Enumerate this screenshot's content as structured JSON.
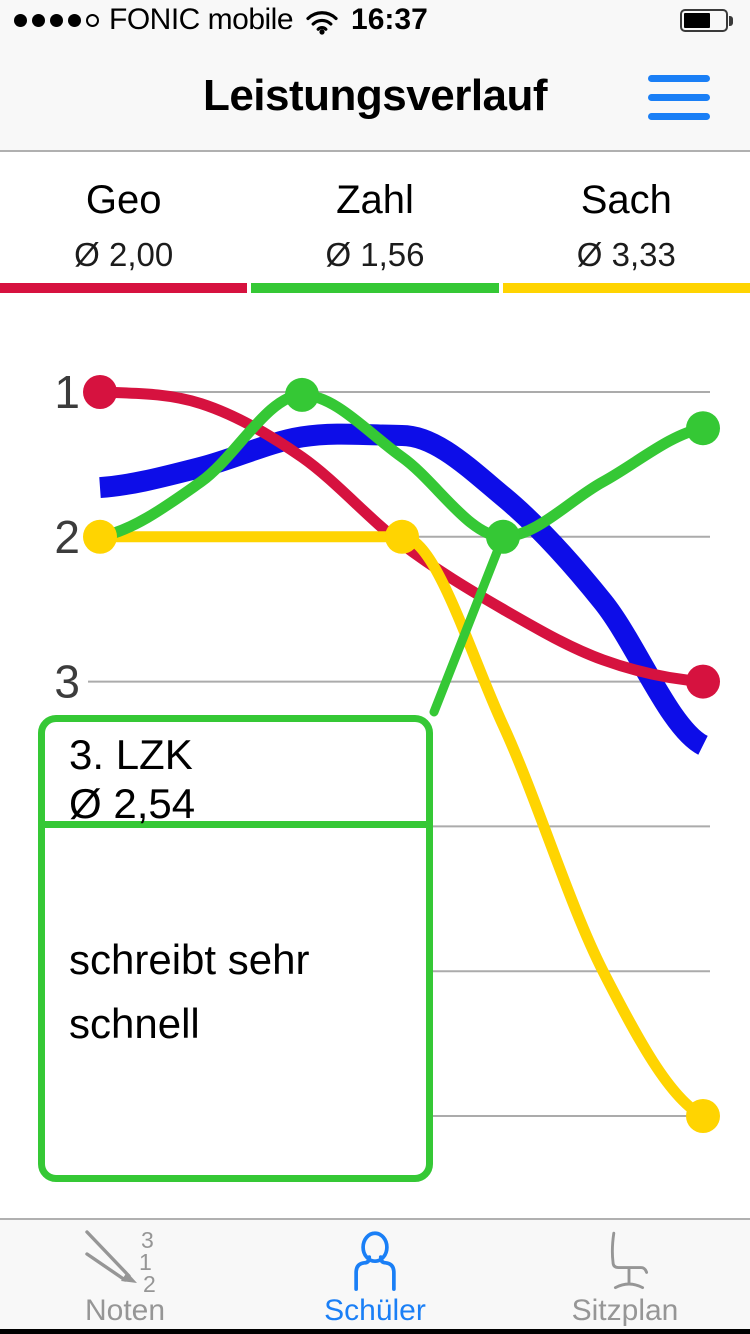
{
  "colors": {
    "ios_blue": "#1a7ff6",
    "red": "#d6123f",
    "green": "#35c835",
    "yellow": "#ffd401",
    "blue_line": "#0d0de8",
    "gridline": "#ababab",
    "axis_label": "#3c3c3c",
    "inactive_gray": "#969696",
    "bar_background": "#f8f8f8",
    "border_gray": "#b0b0b0"
  },
  "status_bar": {
    "carrier": "FONIC mobile",
    "time": "16:37",
    "signal_dots_filled": 4,
    "signal_dots_total": 5,
    "battery_fill_percent": 66
  },
  "nav": {
    "title": "Leistungsverlauf"
  },
  "subjects": [
    {
      "name": "Geo",
      "average": "Ø 2,00",
      "color": "#d6123f"
    },
    {
      "name": "Zahl",
      "average": "Ø 1,56",
      "color": "#35c835"
    },
    {
      "name": "Sach",
      "average": "Ø 3,33",
      "color": "#ffd401"
    }
  ],
  "chart_data": {
    "type": "line",
    "title": "Leistungsverlauf (grade history per subject)",
    "y_axis": {
      "unit": "school grade (1 = best, 6 = worst)",
      "min": 1,
      "max": 6,
      "inverted": true,
      "gridlines": 6,
      "visible_tick_labels": [
        "1",
        "2",
        "3"
      ]
    },
    "x_slots": 7,
    "series": [
      {
        "name": "unlabeled-blue-average",
        "color": "#0d0de8",
        "stroke_width": 21,
        "values": [
          1.66,
          1.52,
          1.31,
          1.3,
          1.72,
          2.45,
          3.44
        ],
        "markers": []
      },
      {
        "name": "Geo",
        "color": "#d6123f",
        "stroke_width": 11,
        "values": [
          1.0,
          1.08,
          1.45,
          2.05,
          2.5,
          2.85,
          3.0
        ],
        "markers": [
          1,
          7
        ]
      },
      {
        "name": "Sach",
        "color": "#ffd401",
        "stroke_width": 11,
        "values": [
          2.0,
          2.0,
          2.0,
          2.0,
          3.3,
          5.0,
          6.0
        ],
        "markers": [
          1,
          4,
          7
        ]
      },
      {
        "name": "Zahl",
        "color": "#35c835",
        "stroke_width": 11,
        "values": [
          2.0,
          1.62,
          1.02,
          1.45,
          2.0,
          1.62,
          1.25
        ],
        "markers": [
          3,
          5,
          7
        ]
      }
    ],
    "selected_point": {
      "series": "Zahl",
      "slot": 5,
      "grade": 2.0
    },
    "tooltip": {
      "title": "3. LZK",
      "average": "Ø 2,54",
      "comment": "schreibt sehr schnell"
    }
  },
  "tab_bar": {
    "active_color": "#1a7ff6",
    "inactive_color": "#969696",
    "items": [
      {
        "label": "Noten",
        "icon": "pencil-grades-icon",
        "icon_digits": [
          "3",
          "1",
          "2"
        ],
        "active": false
      },
      {
        "label": "Schüler",
        "icon": "person-icon",
        "active": true
      },
      {
        "label": "Sitzplan",
        "icon": "chair-icon",
        "active": false
      }
    ]
  }
}
